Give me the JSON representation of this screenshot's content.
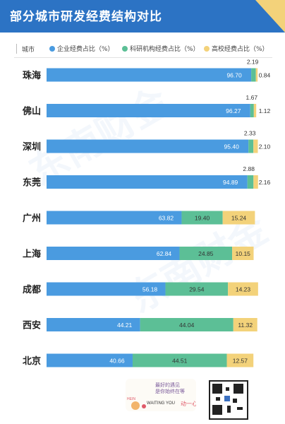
{
  "title": "部分城市研发经费结构对比",
  "header": {
    "city_label": "城市",
    "legend": [
      {
        "label": "企业经费占比（%）",
        "color": "#4a9be0"
      },
      {
        "label": "科研机构经费占比（%）",
        "color": "#5cbf96"
      },
      {
        "label": "高校经费占比（%）",
        "color": "#f3d27a"
      }
    ]
  },
  "chart_data": {
    "type": "bar",
    "stacked": true,
    "orientation": "horizontal",
    "title": "部分城市研发经费结构对比",
    "categories": [
      "珠海",
      "佛山",
      "深圳",
      "东莞",
      "广州",
      "上海",
      "成都",
      "西安",
      "北京"
    ],
    "series": [
      {
        "name": "企业经费占比（%）",
        "color": "#4a9be0",
        "values": [
          96.7,
          96.27,
          95.4,
          94.89,
          63.82,
          62.84,
          56.18,
          44.21,
          40.66
        ]
      },
      {
        "name": "科研机构经费占比（%）",
        "color": "#5cbf96",
        "values": [
          2.19,
          1.67,
          2.33,
          2.88,
          19.4,
          24.85,
          29.54,
          44.04,
          44.51
        ]
      },
      {
        "name": "高校经费占比（%）",
        "color": "#f3d27a",
        "values": [
          0.84,
          1.12,
          2.1,
          2.16,
          15.24,
          10.15,
          14.23,
          11.32,
          12.57
        ]
      }
    ],
    "value_labels": [
      [
        "96.70",
        "2.19",
        "0.84"
      ],
      [
        "96.27",
        "1.67",
        "1.12"
      ],
      [
        "95.40",
        "2.33",
        "2.10"
      ],
      [
        "94.89",
        "2.88",
        "2.16"
      ],
      [
        "63.82",
        "19.40",
        "15.24"
      ],
      [
        "62.84",
        "24.85",
        "10.15"
      ],
      [
        "56.18",
        "29.54",
        "14.23"
      ],
      [
        "44.21",
        "44.04",
        "11.32"
      ],
      [
        "40.66",
        "44.51",
        "12.57"
      ]
    ],
    "xlim": [
      0,
      100
    ],
    "grid": false,
    "legend_position": "top"
  },
  "watermark": "东南财金",
  "footer": {
    "sticker_lines": [
      "最好的遇见",
      "是你始终在等",
      "WAITING YOU",
      "动一心",
      "HEIN"
    ]
  }
}
